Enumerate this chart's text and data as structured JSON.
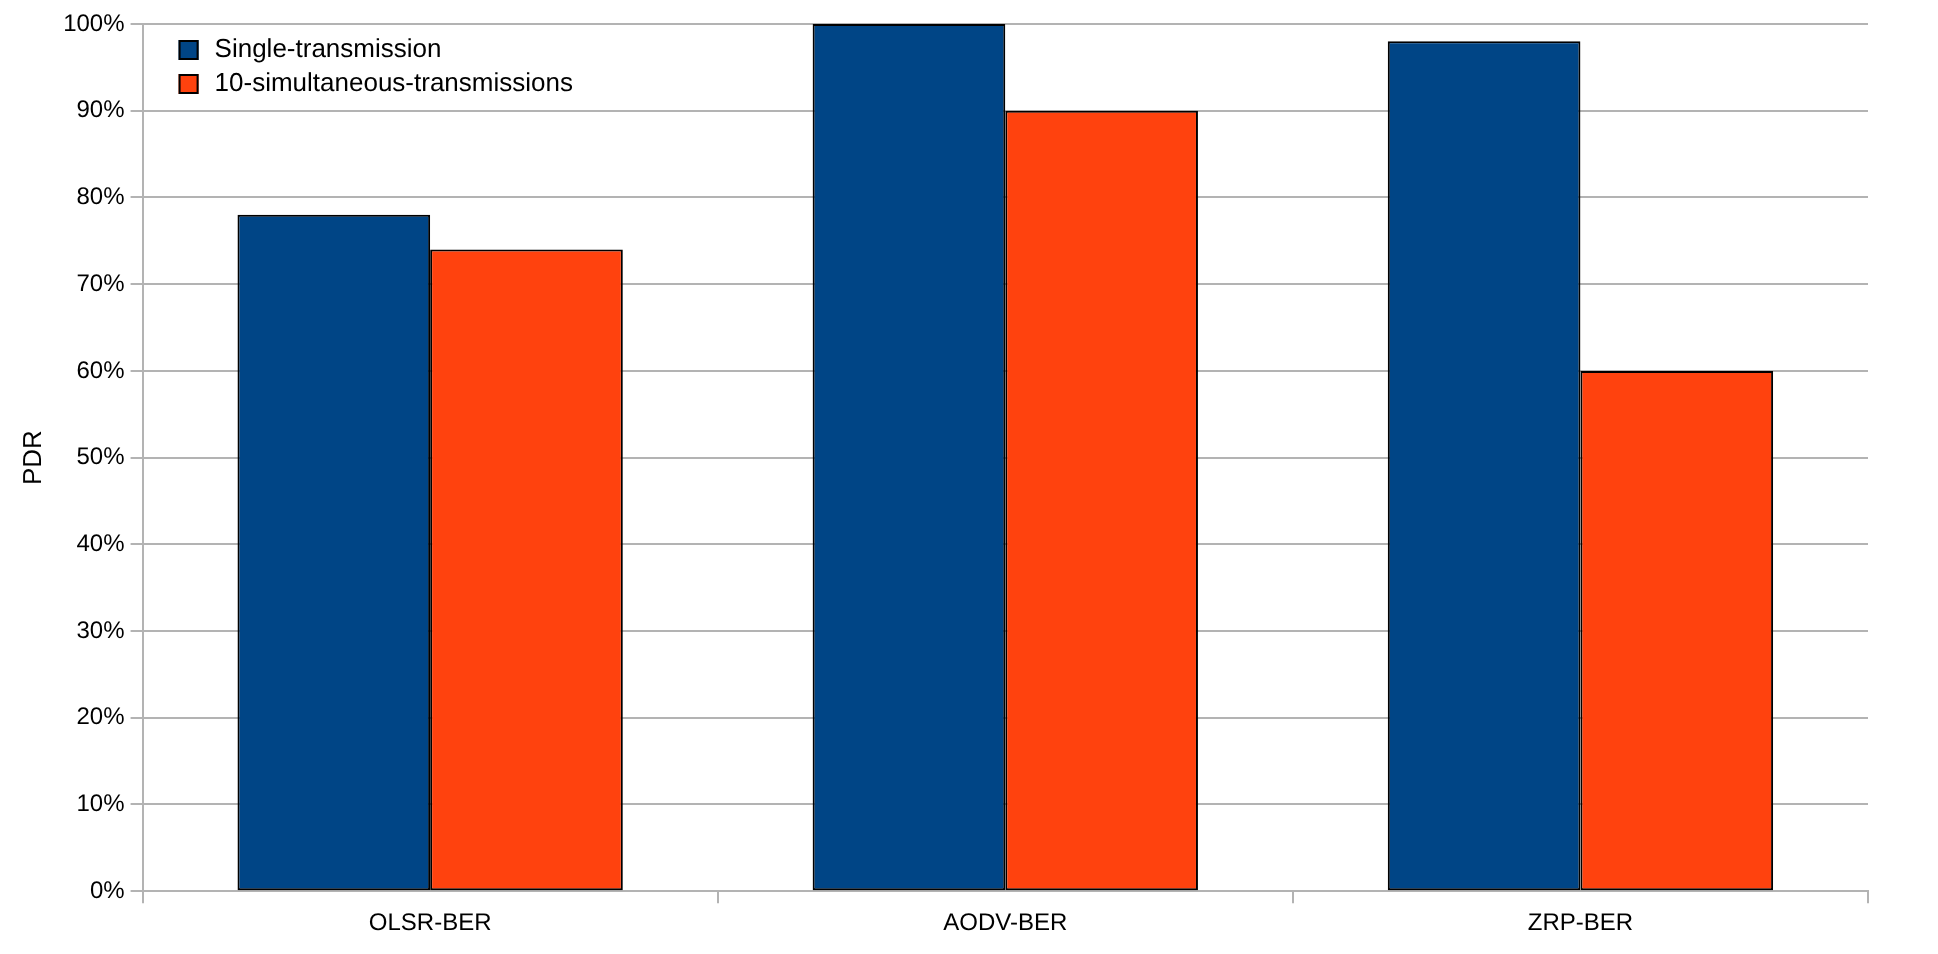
{
  "chart_data": {
    "type": "bar",
    "ylabel": "PDR",
    "categories": [
      "OLSR-BER",
      "AODV-BER",
      "ZRP-BER"
    ],
    "series": [
      {
        "name": "Single-transmission",
        "color": "#004586",
        "values": [
          78,
          100,
          98
        ]
      },
      {
        "name": "10-simultaneous-transmissions",
        "color": "#ff420e",
        "values": [
          74,
          90,
          60
        ]
      }
    ],
    "ylim": [
      0,
      100
    ],
    "yticks": [
      {
        "value": 0,
        "label": "0%"
      },
      {
        "value": 10,
        "label": "10%"
      },
      {
        "value": 20,
        "label": "20%"
      },
      {
        "value": 30,
        "label": "30%"
      },
      {
        "value": 40,
        "label": "40%"
      },
      {
        "value": 50,
        "label": "50%"
      },
      {
        "value": 60,
        "label": "60%"
      },
      {
        "value": 70,
        "label": "70%"
      },
      {
        "value": 80,
        "label": "80%"
      },
      {
        "value": 90,
        "label": "90%"
      },
      {
        "value": 100,
        "label": "100%"
      }
    ],
    "grid": "y",
    "legend": "top left"
  }
}
